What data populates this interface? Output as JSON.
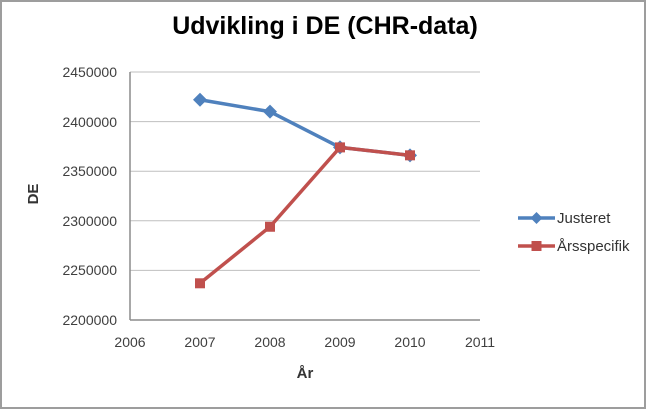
{
  "window": {
    "background": "#ffffff",
    "frame_border_color": "#9d9d9d"
  },
  "chart_data": {
    "type": "line",
    "title": "Udvikling i DE (CHR-data)",
    "xlabel": "År",
    "ylabel": "DE",
    "x": [
      2007,
      2008,
      2009,
      2010
    ],
    "series": [
      {
        "name": "Justeret",
        "color": "#4f81bd",
        "marker": "diamond",
        "values": [
          2422000,
          2410000,
          2374000,
          2366000
        ]
      },
      {
        "name": "Årsspecifik",
        "color": "#c0504d",
        "marker": "square",
        "values": [
          2237000,
          2294000,
          2374000,
          2366000
        ]
      }
    ],
    "xlim": [
      2006,
      2011
    ],
    "ylim": [
      2200000,
      2450000
    ],
    "x_ticks": [
      "2006",
      "2007",
      "2008",
      "2009",
      "2010",
      "2011"
    ],
    "y_ticks": [
      "2200000",
      "2250000",
      "2300000",
      "2350000",
      "2400000",
      "2450000"
    ],
    "grid": true,
    "legend_position": "right",
    "gridline_color": "#bfbfbf",
    "axis_color": "#8c8c8c"
  }
}
